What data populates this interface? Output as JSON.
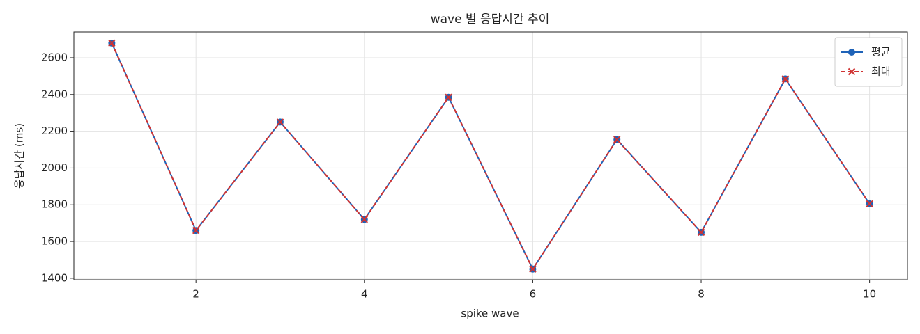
{
  "chart_data": {
    "type": "line",
    "title": "wave 별 응답시간 추이",
    "xlabel": "spike wave",
    "ylabel": "응답시간 (ms)",
    "x": [
      1,
      2,
      3,
      4,
      5,
      6,
      7,
      8,
      9,
      10
    ],
    "series": [
      {
        "name": "평균",
        "color": "#1f63b8",
        "marker": "circle",
        "linestyle": "solid",
        "values": [
          2680,
          1660,
          2250,
          1720,
          2385,
          1450,
          2155,
          1650,
          2485,
          1805
        ]
      },
      {
        "name": "최대",
        "color": "#d03333",
        "marker": "x",
        "linestyle": "dashed",
        "values": [
          2680,
          1660,
          2250,
          1720,
          2385,
          1450,
          2155,
          1650,
          2485,
          1805
        ]
      }
    ],
    "xlim": [
      0.55,
      10.45
    ],
    "ylim": [
      1392,
      2740
    ],
    "xticks": [
      2,
      4,
      6,
      8,
      10
    ],
    "yticks": [
      1400,
      1600,
      1800,
      2000,
      2200,
      2400,
      2600
    ],
    "grid": true,
    "legend": "upper right"
  }
}
